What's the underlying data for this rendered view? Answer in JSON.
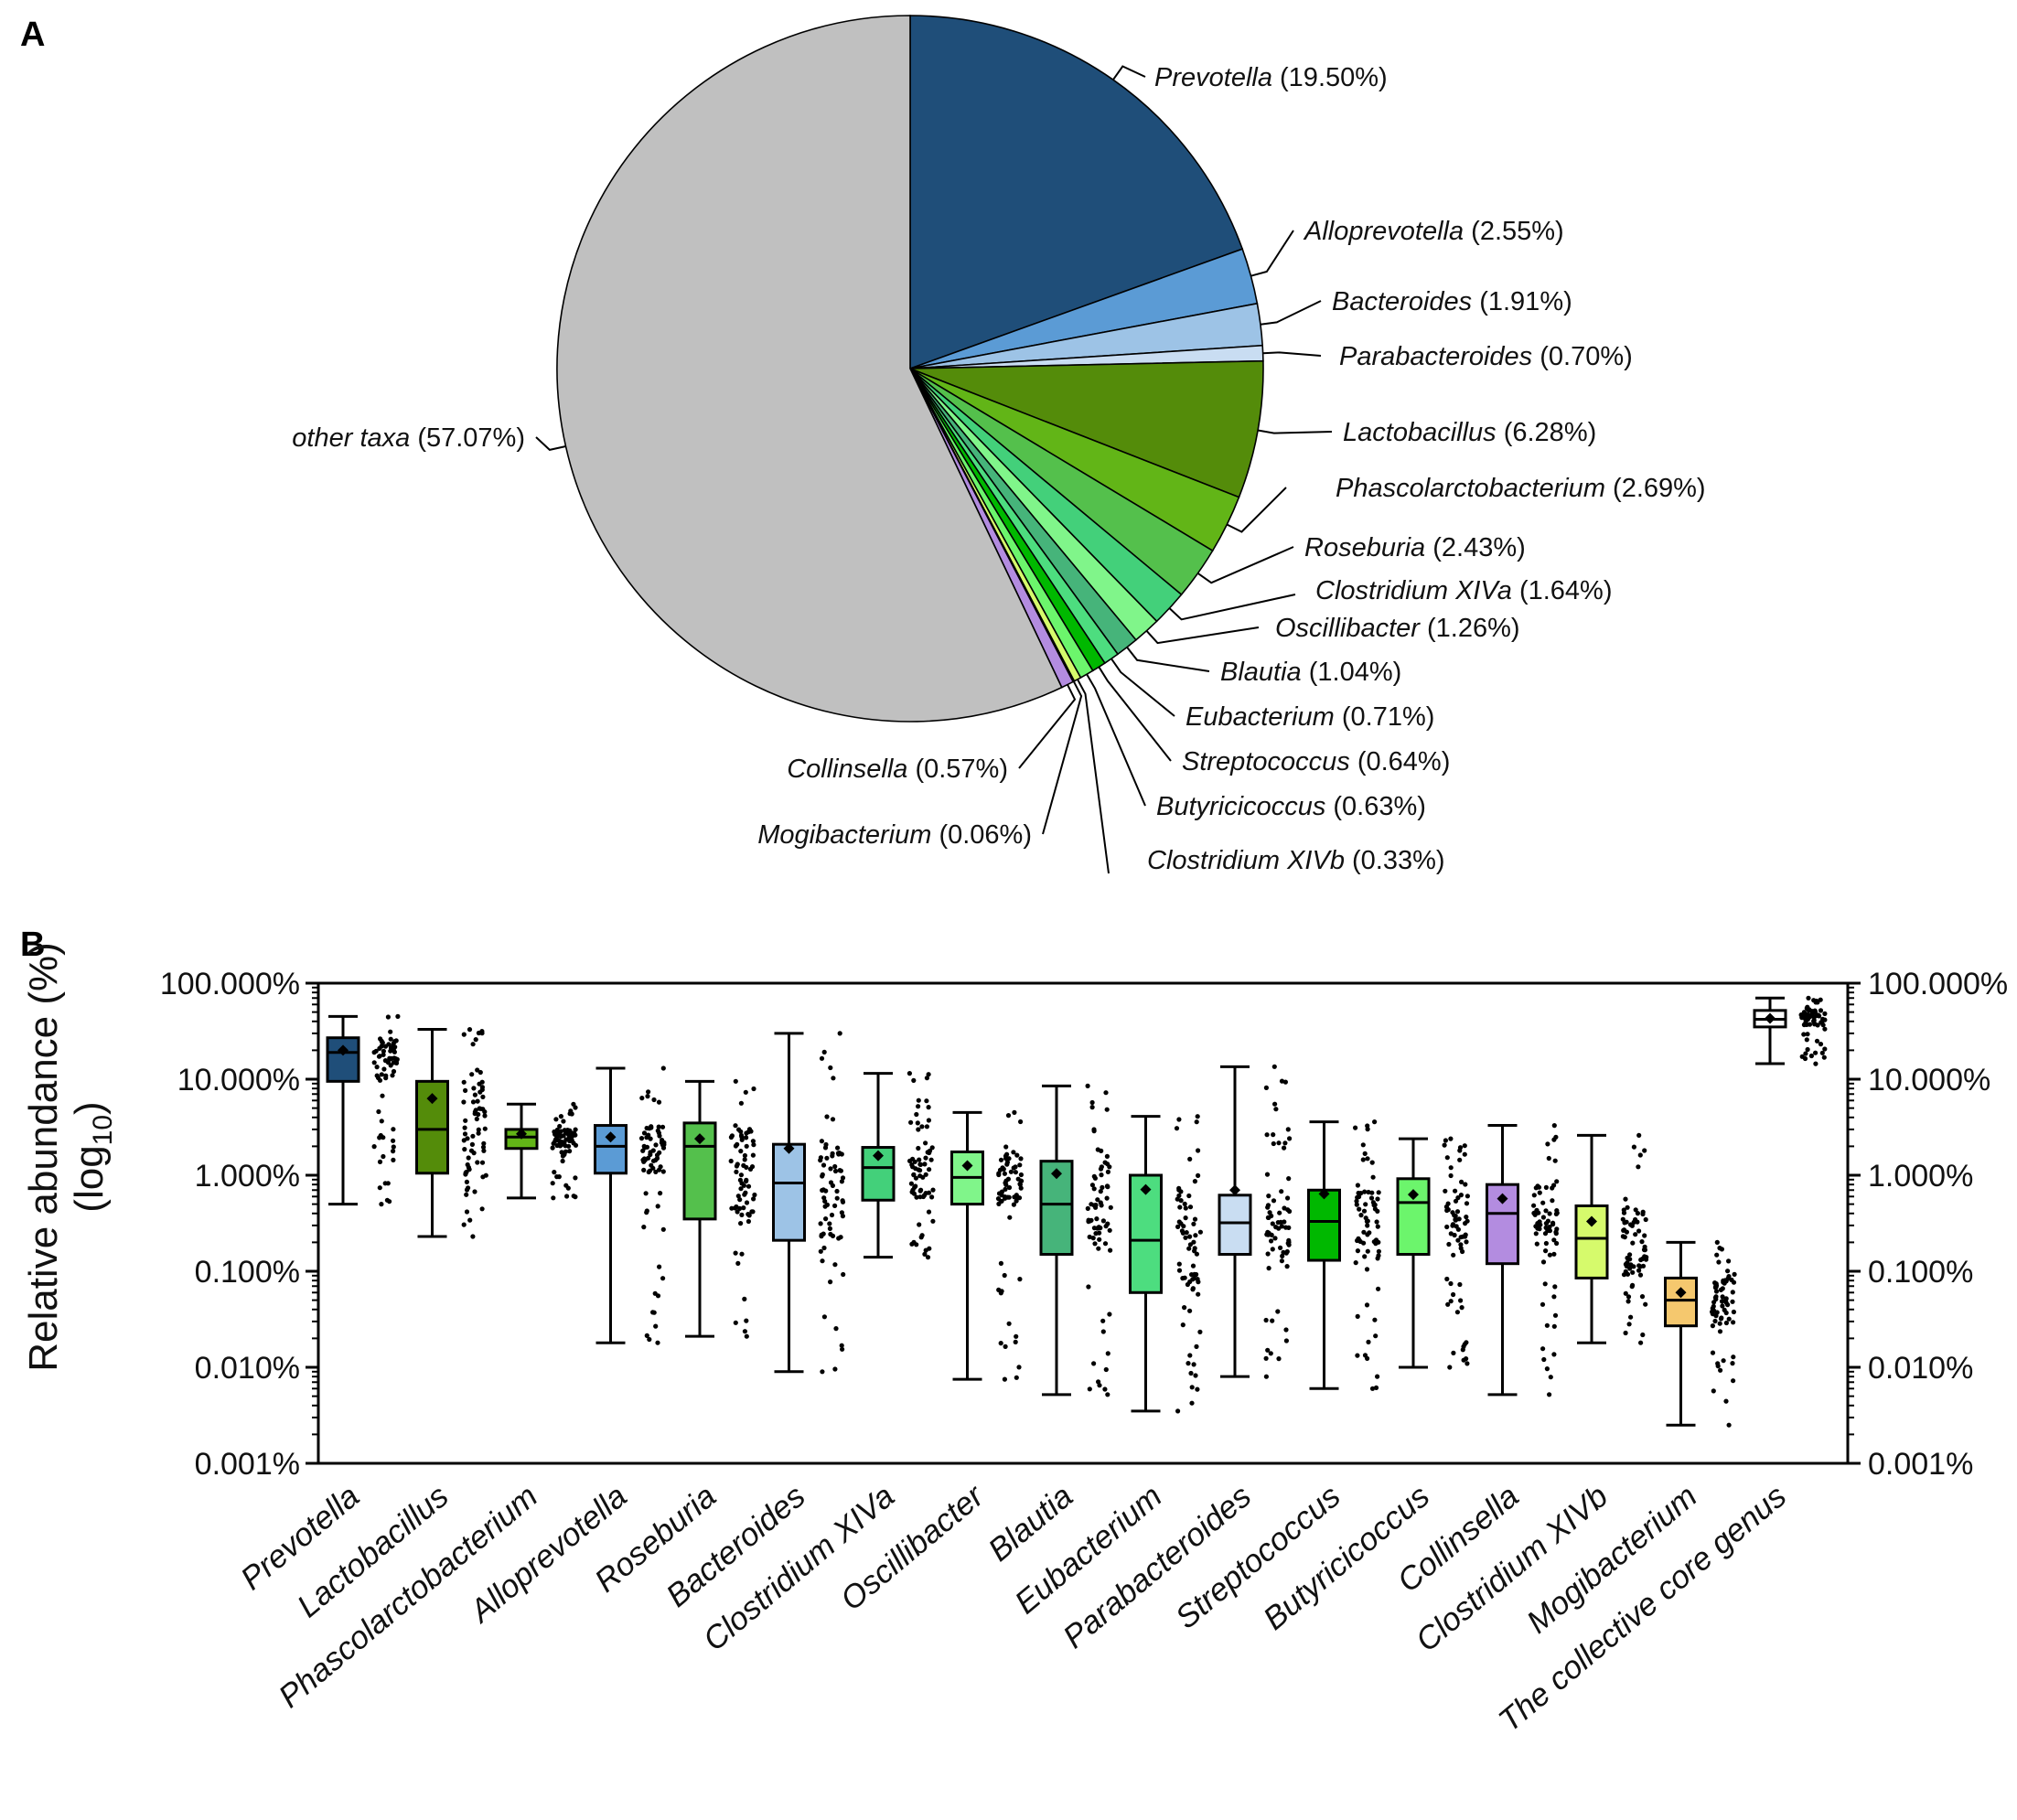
{
  "panels": {
    "a_label": "A",
    "b_label": "B"
  },
  "chart_data": [
    {
      "type": "pie",
      "panel": "A",
      "slices": [
        {
          "taxon": "Prevotella",
          "pct_text": "(19.50%)",
          "value": 19.5,
          "color": "#1f4e79"
        },
        {
          "taxon": "Alloprevotella",
          "pct_text": "(2.55%)",
          "value": 2.55,
          "color": "#5b9bd5"
        },
        {
          "taxon": "Bacteroides",
          "pct_text": "(1.91%)",
          "value": 1.91,
          "color": "#9dc3e6"
        },
        {
          "taxon": "Parabacteroides",
          "pct_text": "(0.70%)",
          "value": 0.7,
          "color": "#c9ddf2"
        },
        {
          "taxon": "Lactobacillus",
          "pct_text": "(6.28%)",
          "value": 6.28,
          "color": "#548c0a"
        },
        {
          "taxon": "Phascolarctobacterium",
          "pct_text": "(2.69%)",
          "value": 2.69,
          "color": "#62b517"
        },
        {
          "taxon": "Roseburia",
          "pct_text": "(2.43%)",
          "value": 2.43,
          "color": "#54c04c"
        },
        {
          "taxon": "Clostridium XIVa",
          "pct_text": "(1.64%)",
          "value": 1.64,
          "color": "#43d07a"
        },
        {
          "taxon": "Oscillibacter",
          "pct_text": "(1.26%)",
          "value": 1.26,
          "color": "#80f58a"
        },
        {
          "taxon": "Blautia",
          "pct_text": "(1.04%)",
          "value": 1.04,
          "color": "#46b47a"
        },
        {
          "taxon": "Eubacterium",
          "pct_text": "(0.71%)",
          "value": 0.71,
          "color": "#4ddd7f"
        },
        {
          "taxon": "Streptococcus",
          "pct_text": "(0.64%)",
          "value": 0.64,
          "color": "#00b800"
        },
        {
          "taxon": "Butyricicoccus",
          "pct_text": "(0.63%)",
          "value": 0.63,
          "color": "#6cf56c"
        },
        {
          "taxon": "Clostridium XIVb",
          "pct_text": "(0.33%)",
          "value": 0.33,
          "color": "#d6fa6c"
        },
        {
          "taxon": "Mogibacterium",
          "pct_text": "(0.06%)",
          "value": 0.06,
          "color": "#f5c86e"
        },
        {
          "taxon": "Collinsella",
          "pct_text": "(0.57%)",
          "value": 0.57,
          "color": "#b38ce0"
        },
        {
          "taxon": "other taxa",
          "pct_text": "(57.07%)",
          "value": 57.07,
          "color": "#c0c0c0"
        }
      ]
    },
    {
      "type": "boxplot",
      "panel": "B",
      "ylabel_line1": "Relative abundance (%)",
      "ylabel_line2_base": "(log",
      "ylabel_line2_sub": "10",
      "ylabel_line2_end": ")",
      "yscale": "log10",
      "ylim": [
        0.001,
        100
      ],
      "ytick_values": [
        100,
        10,
        1,
        0.1,
        0.01,
        0.001
      ],
      "ytick_labels": [
        "100.000%",
        "10.000%",
        "1.000%",
        "0.100%",
        "0.010%",
        "0.001%"
      ],
      "categories": [
        {
          "name": "Prevotella",
          "color": "#1f4e79",
          "min": 0.5,
          "q1": 9.5,
          "median": 19,
          "q3": 27,
          "max": 45,
          "mean": 20,
          "pts_low": 0.5,
          "pts_high": 45
        },
        {
          "name": "Lactobacillus",
          "color": "#548c0a",
          "min": 0.23,
          "q1": 1.05,
          "median": 3.0,
          "q3": 9.5,
          "max": 33,
          "mean": 6.3,
          "pts_low": 0.23,
          "pts_high": 33
        },
        {
          "name": "Phascolarctobacterium",
          "color": "#62b517",
          "min": 0.58,
          "q1": 1.9,
          "median": 2.5,
          "q3": 3.0,
          "max": 5.5,
          "mean": 2.7,
          "pts_low": 0.58,
          "pts_high": 5.5
        },
        {
          "name": "Alloprevotella",
          "color": "#5b9bd5",
          "min": 0.018,
          "q1": 1.05,
          "median": 2.0,
          "q3": 3.3,
          "max": 13,
          "mean": 2.5,
          "pts_low": 0.018,
          "pts_high": 13
        },
        {
          "name": "Roseburia",
          "color": "#54c04c",
          "min": 0.021,
          "q1": 0.35,
          "median": 2.0,
          "q3": 3.5,
          "max": 9.5,
          "mean": 2.4,
          "pts_low": 0.021,
          "pts_high": 9.5
        },
        {
          "name": "Bacteroides",
          "color": "#9dc3e6",
          "min": 0.009,
          "q1": 0.21,
          "median": 0.83,
          "q3": 2.1,
          "max": 30,
          "mean": 1.9,
          "pts_low": 0.009,
          "pts_high": 30
        },
        {
          "name": "Clostridium XIVa",
          "color": "#43d07a",
          "min": 0.14,
          "q1": 0.55,
          "median": 1.2,
          "q3": 1.95,
          "max": 11.5,
          "mean": 1.6,
          "pts_low": 0.14,
          "pts_high": 11.5
        },
        {
          "name": "Oscillibacter",
          "color": "#80f58a",
          "min": 0.0075,
          "q1": 0.5,
          "median": 0.95,
          "q3": 1.75,
          "max": 4.5,
          "mean": 1.26,
          "pts_low": 0.0075,
          "pts_high": 4.5
        },
        {
          "name": "Blautia",
          "color": "#46b47a",
          "min": 0.0052,
          "q1": 0.15,
          "median": 0.5,
          "q3": 1.4,
          "max": 8.5,
          "mean": 1.04,
          "pts_low": 0.0052,
          "pts_high": 8.5
        },
        {
          "name": "Eubacterium",
          "color": "#4ddd7f",
          "min": 0.0035,
          "q1": 0.06,
          "median": 0.21,
          "q3": 1.0,
          "max": 4.1,
          "mean": 0.71,
          "pts_low": 0.0035,
          "pts_high": 4.1
        },
        {
          "name": "Parabacteroides",
          "color": "#c9ddf2",
          "min": 0.008,
          "q1": 0.15,
          "median": 0.32,
          "q3": 0.62,
          "max": 13.5,
          "mean": 0.7,
          "pts_low": 0.008,
          "pts_high": 13.5
        },
        {
          "name": "Streptococcus",
          "color": "#00b800",
          "min": 0.006,
          "q1": 0.13,
          "median": 0.33,
          "q3": 0.7,
          "max": 3.6,
          "mean": 0.64,
          "pts_low": 0.006,
          "pts_high": 3.6
        },
        {
          "name": "Butyricicoccus",
          "color": "#6cf56c",
          "min": 0.01,
          "q1": 0.15,
          "median": 0.52,
          "q3": 0.92,
          "max": 2.4,
          "mean": 0.63,
          "pts_low": 0.01,
          "pts_high": 2.4
        },
        {
          "name": "Collinsella",
          "color": "#b38ce0",
          "min": 0.0052,
          "q1": 0.12,
          "median": 0.4,
          "q3": 0.8,
          "max": 3.3,
          "mean": 0.57,
          "pts_low": 0.0052,
          "pts_high": 3.3
        },
        {
          "name": "Clostridium XIVb",
          "color": "#d6fa6c",
          "min": 0.018,
          "q1": 0.085,
          "median": 0.22,
          "q3": 0.48,
          "max": 2.6,
          "mean": 0.33,
          "pts_low": 0.018,
          "pts_high": 2.6
        },
        {
          "name": "Mogibacterium",
          "color": "#f5c86e",
          "min": 0.0025,
          "q1": 0.027,
          "median": 0.05,
          "q3": 0.085,
          "max": 0.2,
          "mean": 0.06,
          "pts_low": 0.0025,
          "pts_high": 0.2
        },
        {
          "name": "The collective core genus",
          "color": "#ffffff",
          "min": 14.5,
          "q1": 35,
          "median": 42,
          "q3": 52,
          "max": 70,
          "mean": 43,
          "pts_low": 14.5,
          "pts_high": 70
        }
      ]
    }
  ]
}
